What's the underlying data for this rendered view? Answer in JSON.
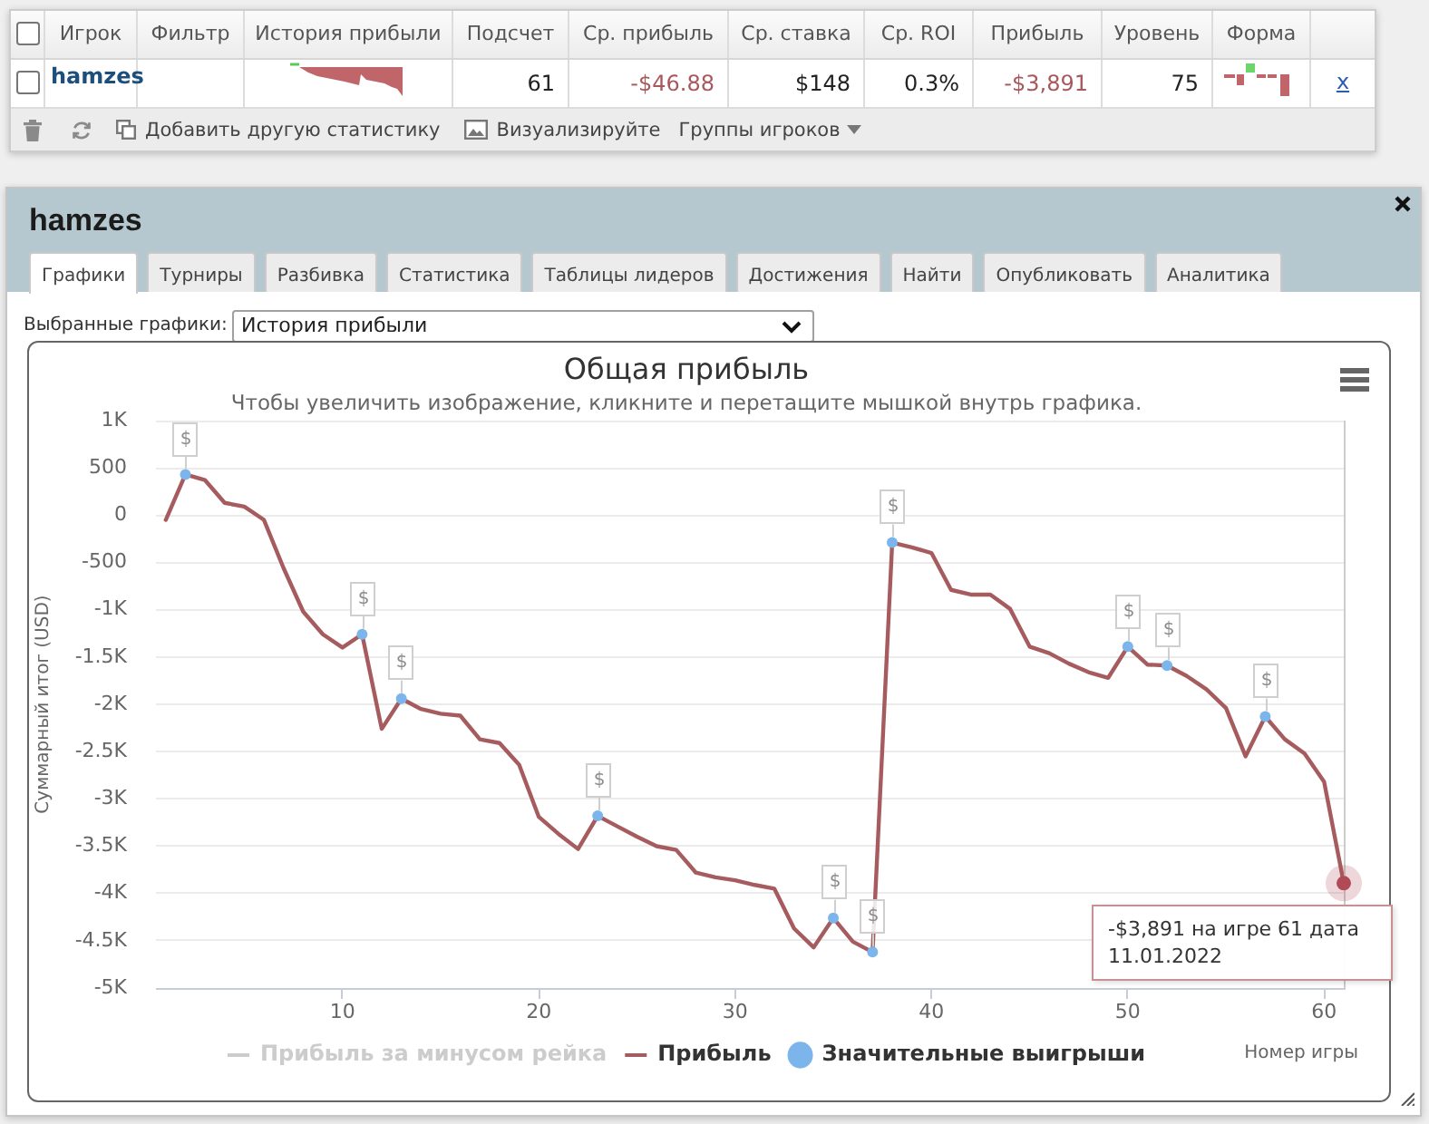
{
  "chart_data": [
    {
      "type": "other",
      "categories": [
        null,
        "Игрок",
        "Фильтр",
        "История прибыли",
        "Подсчет",
        "Ср. прибыль",
        "Ср. ставка",
        "Ср. ROI",
        "Прибыль",
        "Уровень",
        "Форма",
        null
      ],
      "cell_labels": [
        [
          null,
          "hamzes",
          null,
          null,
          "61",
          "-$46.88",
          "$148",
          "0.3%",
          "-$3,891",
          "75",
          null,
          "x"
        ]
      ],
      "annotations": [
        "Добавить другую статистику",
        "Визуализируйте",
        "Группы игроков"
      ]
    },
    {
      "type": "other",
      "title": "hamzes",
      "categories": [
        "Графики",
        "Турниры",
        "Разбивка",
        "Статистика",
        "Таблицы лидеров",
        "Достижения",
        "Найти",
        "Опубликовать",
        "Аналитика"
      ],
      "annotations": [
        "Выбранные графики:",
        "История прибыли"
      ]
    },
    {
      "type": "line",
      "title": "Общая прибыль",
      "subtitle": "Чтобы увеличить изображение, кликните и перетащите мышкой внутрь графика.",
      "xlabel": "Номер игры",
      "ylabel": "Суммарный итог (USD)",
      "x": [
        1,
        2,
        3,
        4,
        5,
        6,
        7,
        8,
        9,
        10,
        11,
        12,
        13,
        14,
        15,
        16,
        17,
        18,
        19,
        20,
        21,
        22,
        23,
        24,
        25,
        26,
        27,
        28,
        29,
        30,
        31,
        32,
        33,
        34,
        35,
        36,
        37,
        38,
        39,
        40,
        41,
        42,
        43,
        44,
        45,
        46,
        47,
        48,
        49,
        50,
        51,
        52,
        53,
        54,
        55,
        56,
        57,
        58,
        59,
        60,
        61
      ],
      "series": [
        {
          "name": "Прибыль за минусом рейка",
          "color": "#cccccc",
          "values": [
            null,
            null,
            null,
            null,
            null,
            null,
            null,
            null,
            null,
            null,
            null,
            null,
            null,
            null,
            null,
            null,
            null,
            null,
            null,
            null,
            null,
            null,
            null,
            null,
            null,
            null,
            null,
            null,
            null,
            null,
            null,
            null,
            null,
            null,
            null,
            null,
            null,
            null,
            null,
            null,
            null,
            null,
            null,
            null,
            null,
            null,
            null,
            null,
            null,
            null,
            null,
            null,
            null,
            null,
            null,
            null,
            null,
            null,
            null,
            null,
            null
          ]
        },
        {
          "name": "Прибыль",
          "color": "#a65c5f",
          "values": [
            -50,
            430,
            370,
            130,
            90,
            -50,
            -560,
            -1020,
            -1260,
            -1400,
            -1260,
            -2260,
            -1940,
            -2050,
            -2100,
            -2120,
            -2370,
            -2410,
            -2640,
            -3190,
            -3370,
            -3530,
            -3180,
            -3290,
            -3400,
            -3500,
            -3540,
            -3780,
            -3830,
            -3860,
            -3910,
            -3950,
            -4370,
            -4570,
            -4260,
            -4510,
            -4620,
            -290,
            -340,
            -400,
            -790,
            -840,
            -840,
            -990,
            -1390,
            -1460,
            -1570,
            -1660,
            -1720,
            -1390,
            -1580,
            -1590,
            -1700,
            -1840,
            -2040,
            -2550,
            -2130,
            -2370,
            -2520,
            -2820,
            -3891
          ]
        },
        {
          "name": "Значительные выигрыши",
          "type": "scatter",
          "color": "#7cb5ec",
          "marker": "circle",
          "x": [
            2,
            11,
            13,
            23,
            35,
            37,
            38,
            50,
            52,
            57
          ],
          "values": [
            430,
            -1260,
            -1940,
            -3180,
            -4260,
            -4620,
            -290,
            -1390,
            -1590,
            -2130
          ],
          "value_labels": [
            "$",
            "$",
            "$",
            "$",
            "$",
            "$",
            "$",
            "$",
            "$",
            "$"
          ]
        }
      ],
      "xlim": [
        0.5,
        61
      ],
      "xticks": [
        10,
        20,
        30,
        40,
        50,
        60
      ],
      "ylim": [
        -5000,
        1000
      ],
      "yticks": [
        {
          "value": -5000,
          "label": "-5K"
        },
        {
          "value": -4500,
          "label": "-4.5K"
        },
        {
          "value": -4000,
          "label": "-4K"
        },
        {
          "value": -3500,
          "label": "-3.5K"
        },
        {
          "value": -3000,
          "label": "-3K"
        },
        {
          "value": -2500,
          "label": "-2.5K"
        },
        {
          "value": -2000,
          "label": "-2K"
        },
        {
          "value": -1500,
          "label": "-1.5K"
        },
        {
          "value": -1000,
          "label": "-1K"
        },
        -500,
        0,
        500,
        {
          "value": 1000,
          "label": "1K"
        }
      ],
      "grid": "y",
      "legend": "bottom",
      "marker": "none",
      "ref_lines": [
        {
          "axis": "x",
          "value": 61,
          "color": "#cccccc"
        }
      ],
      "annotations": [
        {
          "text": "-$3,891 на игре 61 дата 11.01.2022",
          "x": 61,
          "y": -3891
        }
      ]
    }
  ]
}
